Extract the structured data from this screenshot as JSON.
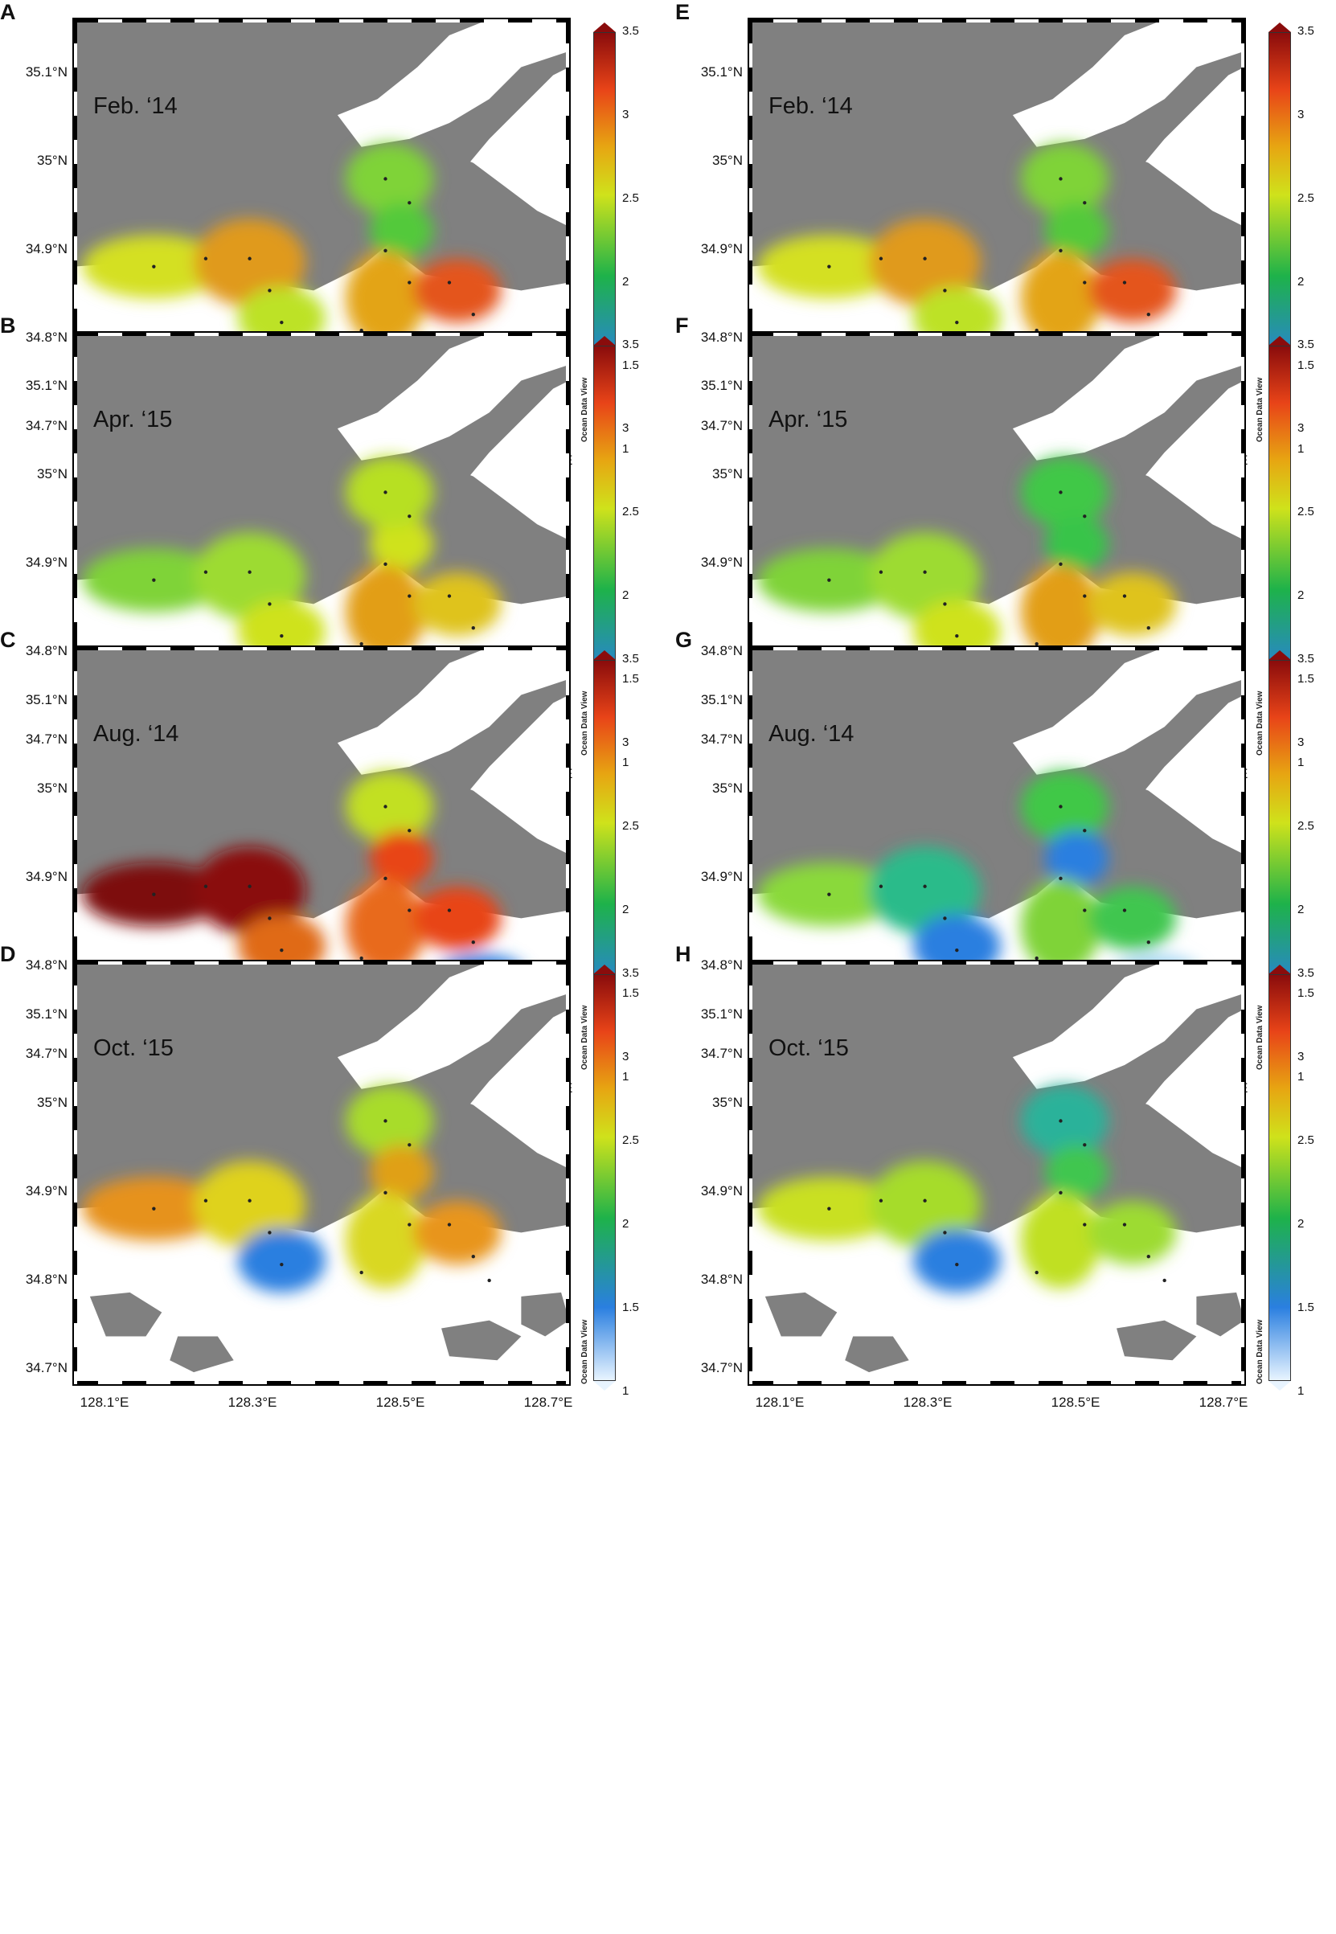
{
  "colorbar": {
    "ticks": [
      "3.5",
      "3",
      "2.5",
      "2",
      "1.5",
      "1"
    ],
    "credit": "Ocean Data View"
  },
  "axes": {
    "lat_ticks": [
      "35.1°N",
      "35°N",
      "34.9°N",
      "34.8°N",
      "34.7°N"
    ],
    "lon_ticks": [
      "128.1°E",
      "128.3°E",
      "128.5°E",
      "128.7°E"
    ]
  },
  "palette": {
    "land": "#808080",
    "water": "#ffffff",
    "station": "#222222"
  },
  "panels": [
    {
      "letter": "A",
      "period": "Feb. ‘14",
      "blobs": [
        [
          "#d4e021",
          "#e09a1a",
          "#bde227"
        ],
        [
          "#7fd339",
          "#52c93b"
        ],
        [
          "#e3a417",
          "#e4551a"
        ]
      ]
    },
    {
      "letter": "B",
      "period": "Apr. ‘15",
      "blobs": [
        [
          "#7fd339",
          "#9ddb30",
          "#cfe21b"
        ],
        [
          "#e0b21a",
          "#cfe21b",
          "#b7e024"
        ],
        [
          "#e29e17",
          "#dfc31a"
        ]
      ]
    },
    {
      "letter": "C",
      "period": "Aug. ‘14",
      "blobs": [
        [
          "#7d0a0a",
          "#8a0c0c",
          "#e06a14"
        ],
        [
          "#c2e023",
          "#e84418"
        ],
        [
          "#e86a1a",
          "#e84418",
          "#2f7fe0"
        ]
      ]
    },
    {
      "letter": "D",
      "period": "Oct. ‘15",
      "blobs": [
        [
          "#e6921a",
          "#dfd21c",
          "#2a7fe0"
        ],
        [
          "#a8dc2c",
          "#e0a018"
        ],
        [
          "#d9d820",
          "#e8951a"
        ]
      ]
    },
    {
      "letter": "E",
      "period": "Feb. ‘14",
      "blobs": [
        [
          "#d4e021",
          "#e09a1a",
          "#bde227"
        ],
        [
          "#7fd339",
          "#52c93b"
        ],
        [
          "#e3a417",
          "#e4551a"
        ]
      ]
    },
    {
      "letter": "F",
      "period": "Apr. ‘15",
      "blobs": [
        [
          "#7fd339",
          "#9ddb30",
          "#cfe21b"
        ],
        [
          "#41c846",
          "#38c44a"
        ],
        [
          "#e29e17",
          "#dfc31a"
        ]
      ]
    },
    {
      "letter": "G",
      "period": "Aug. ‘14",
      "blobs": [
        [
          "#8ad93a",
          "#2abb8a",
          "#2a7fe0"
        ],
        [
          "#41c846",
          "#2a7fe0"
        ],
        [
          "#7fd339",
          "#3fc650",
          "#a8d8f4"
        ]
      ]
    },
    {
      "letter": "H",
      "period": "Oct. ‘15",
      "blobs": [
        [
          "#c9e021",
          "#a6dc2c",
          "#2a7fe0"
        ],
        [
          "#2ab29a",
          "#3fc650"
        ],
        [
          "#c0e023",
          "#9ddb30"
        ]
      ]
    }
  ]
}
